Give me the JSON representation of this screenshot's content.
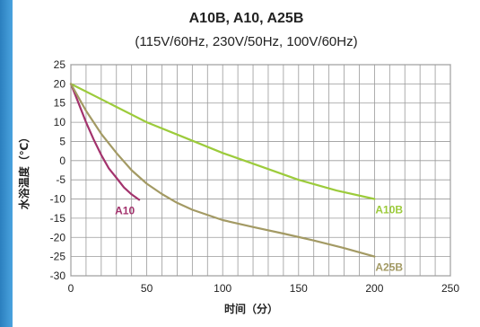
{
  "chart_data": {
    "type": "line",
    "title": "A10B, A10, A25B",
    "subtitle": "(115V/60Hz, 230V/50Hz, 100V/60Hz)",
    "xlabel": "时间（分）",
    "ylabel": "水浴温度（℃）",
    "xlim": [
      0,
      250
    ],
    "ylim": [
      -30,
      25
    ],
    "x_ticks": [
      0,
      50,
      100,
      150,
      200,
      250
    ],
    "y_ticks": [
      25,
      20,
      15,
      10,
      5,
      0,
      -5,
      -10,
      -15,
      -20,
      -25,
      -30
    ],
    "grid": true,
    "legend": "inline labels at line ends",
    "series": [
      {
        "name": "A10",
        "color": "#a3336d",
        "x": [
          0,
          5,
          10,
          15,
          20,
          25,
          30,
          35,
          40,
          45
        ],
        "y": [
          20,
          15,
          10,
          5.5,
          1.5,
          -2,
          -4.5,
          -7,
          -8.8,
          -10.2
        ]
      },
      {
        "name": "A10B",
        "color": "#9ccb3b",
        "x": [
          0,
          25,
          50,
          75,
          100,
          125,
          150,
          175,
          200
        ],
        "y": [
          20,
          15,
          10,
          6,
          2,
          -1.5,
          -5,
          -7.8,
          -10
        ]
      },
      {
        "name": "A25B",
        "color": "#a39a64",
        "x": [
          0,
          10,
          20,
          30,
          40,
          50,
          60,
          70,
          80,
          100,
          120,
          140,
          160,
          180,
          200
        ],
        "y": [
          20,
          13,
          7,
          2,
          -2.5,
          -6,
          -8.7,
          -11,
          -12.8,
          -15.5,
          -17.3,
          -19,
          -20.8,
          -22.8,
          -25
        ]
      }
    ]
  }
}
